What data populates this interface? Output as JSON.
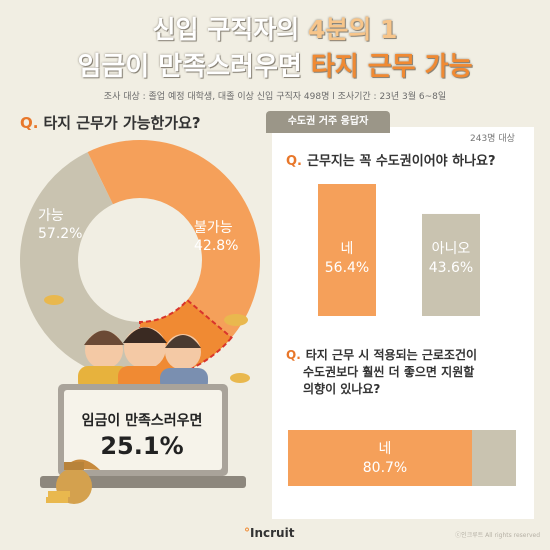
{
  "header": {
    "title_line1_a": "신입 구직자의 ",
    "title_line1_b": "4분의 1",
    "title_line2_a": "임금이 만족스러우면 ",
    "title_line2_b": "타지 근무 가능",
    "subtitle": "조사 대상 : 졸업 예정 대학생, 대졸 이상 신입 구직자 498명 l 조사기간 : 23년 3월 6~8일"
  },
  "colors": {
    "orange": "#f5a05a",
    "gray": "#c9c3b0",
    "accent": "#e8772a",
    "background": "#f1eee3"
  },
  "q1": {
    "marker": "Q.",
    "text": "타지 근무가 가능한가요?"
  },
  "card": {
    "tab": "수도권 거주 응답자",
    "note": "243명 대상"
  },
  "q2": {
    "marker": "Q.",
    "text": "근무지는 꼭 수도권이어야 하나요?"
  },
  "q3": {
    "marker": "Q.",
    "line1": "타지 근무 시 적용되는 근로조건이",
    "line2": "수도권보다 훨씬 더 좋으면 지원할",
    "line3": "의향이 있나요?"
  },
  "monitor": {
    "label": "임금이 만족스러우면",
    "value": "25.1%"
  },
  "logo": {
    "text": "Incruit"
  },
  "copyright": "ⓒ인크루트 All rights reserved",
  "chart_data": [
    {
      "type": "pie",
      "categories": [
        "가능",
        "불가능"
      ],
      "values": [
        57.2,
        42.8
      ],
      "labels": [
        "57.2%",
        "42.8%"
      ],
      "highlight": {
        "value": 25.1
      }
    },
    {
      "type": "bar",
      "categories": [
        "네",
        "아니오"
      ],
      "values": [
        56.4,
        43.6
      ],
      "labels": [
        "56.4%",
        "43.6%"
      ]
    },
    {
      "type": "bar",
      "orientation": "horizontal",
      "stacked": true,
      "categories": [
        "네",
        ""
      ],
      "values": [
        80.7,
        19.3
      ],
      "labels": [
        "80.7%"
      ]
    }
  ]
}
